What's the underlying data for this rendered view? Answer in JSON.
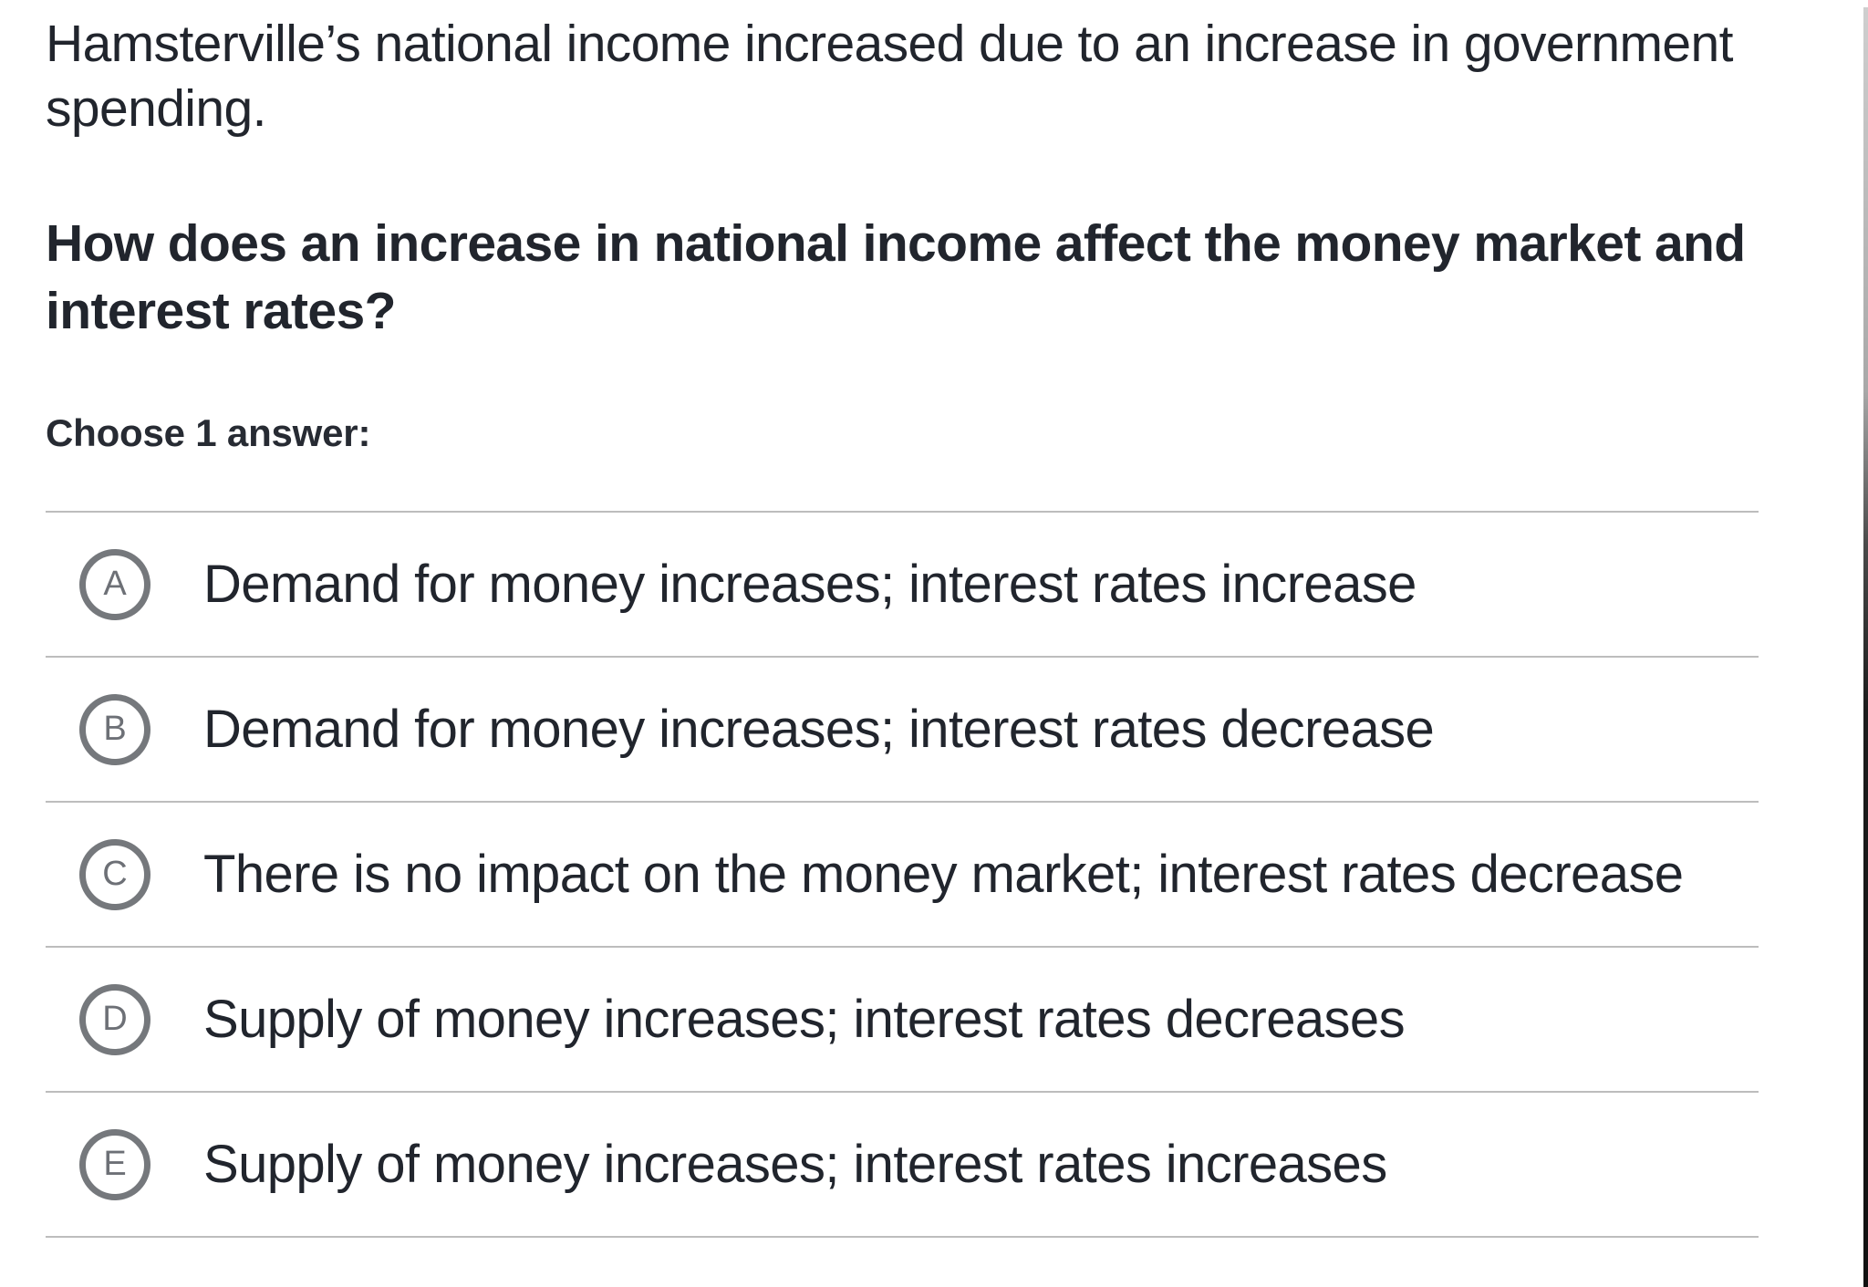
{
  "question": {
    "context": "Hamsterville’s national income increased due to an increase in government spending.",
    "prompt": "How does an increase in national income affect the money market and interest rates?",
    "instruction": "Choose 1 answer:"
  },
  "choices": [
    {
      "letter": "A",
      "text": "Demand for money increases; interest rates increase"
    },
    {
      "letter": "B",
      "text": "Demand for money increases; interest rates decrease"
    },
    {
      "letter": "C",
      "text": "There is no impact on the money market; interest rates decrease"
    },
    {
      "letter": "D",
      "text": "Supply of money increases; interest rates decreases"
    },
    {
      "letter": "E",
      "text": "Supply of money increases; interest rates increases"
    }
  ],
  "colors": {
    "text": "#21252d",
    "bubble_gray": "#75787c",
    "divider": "#bdbdbd"
  }
}
